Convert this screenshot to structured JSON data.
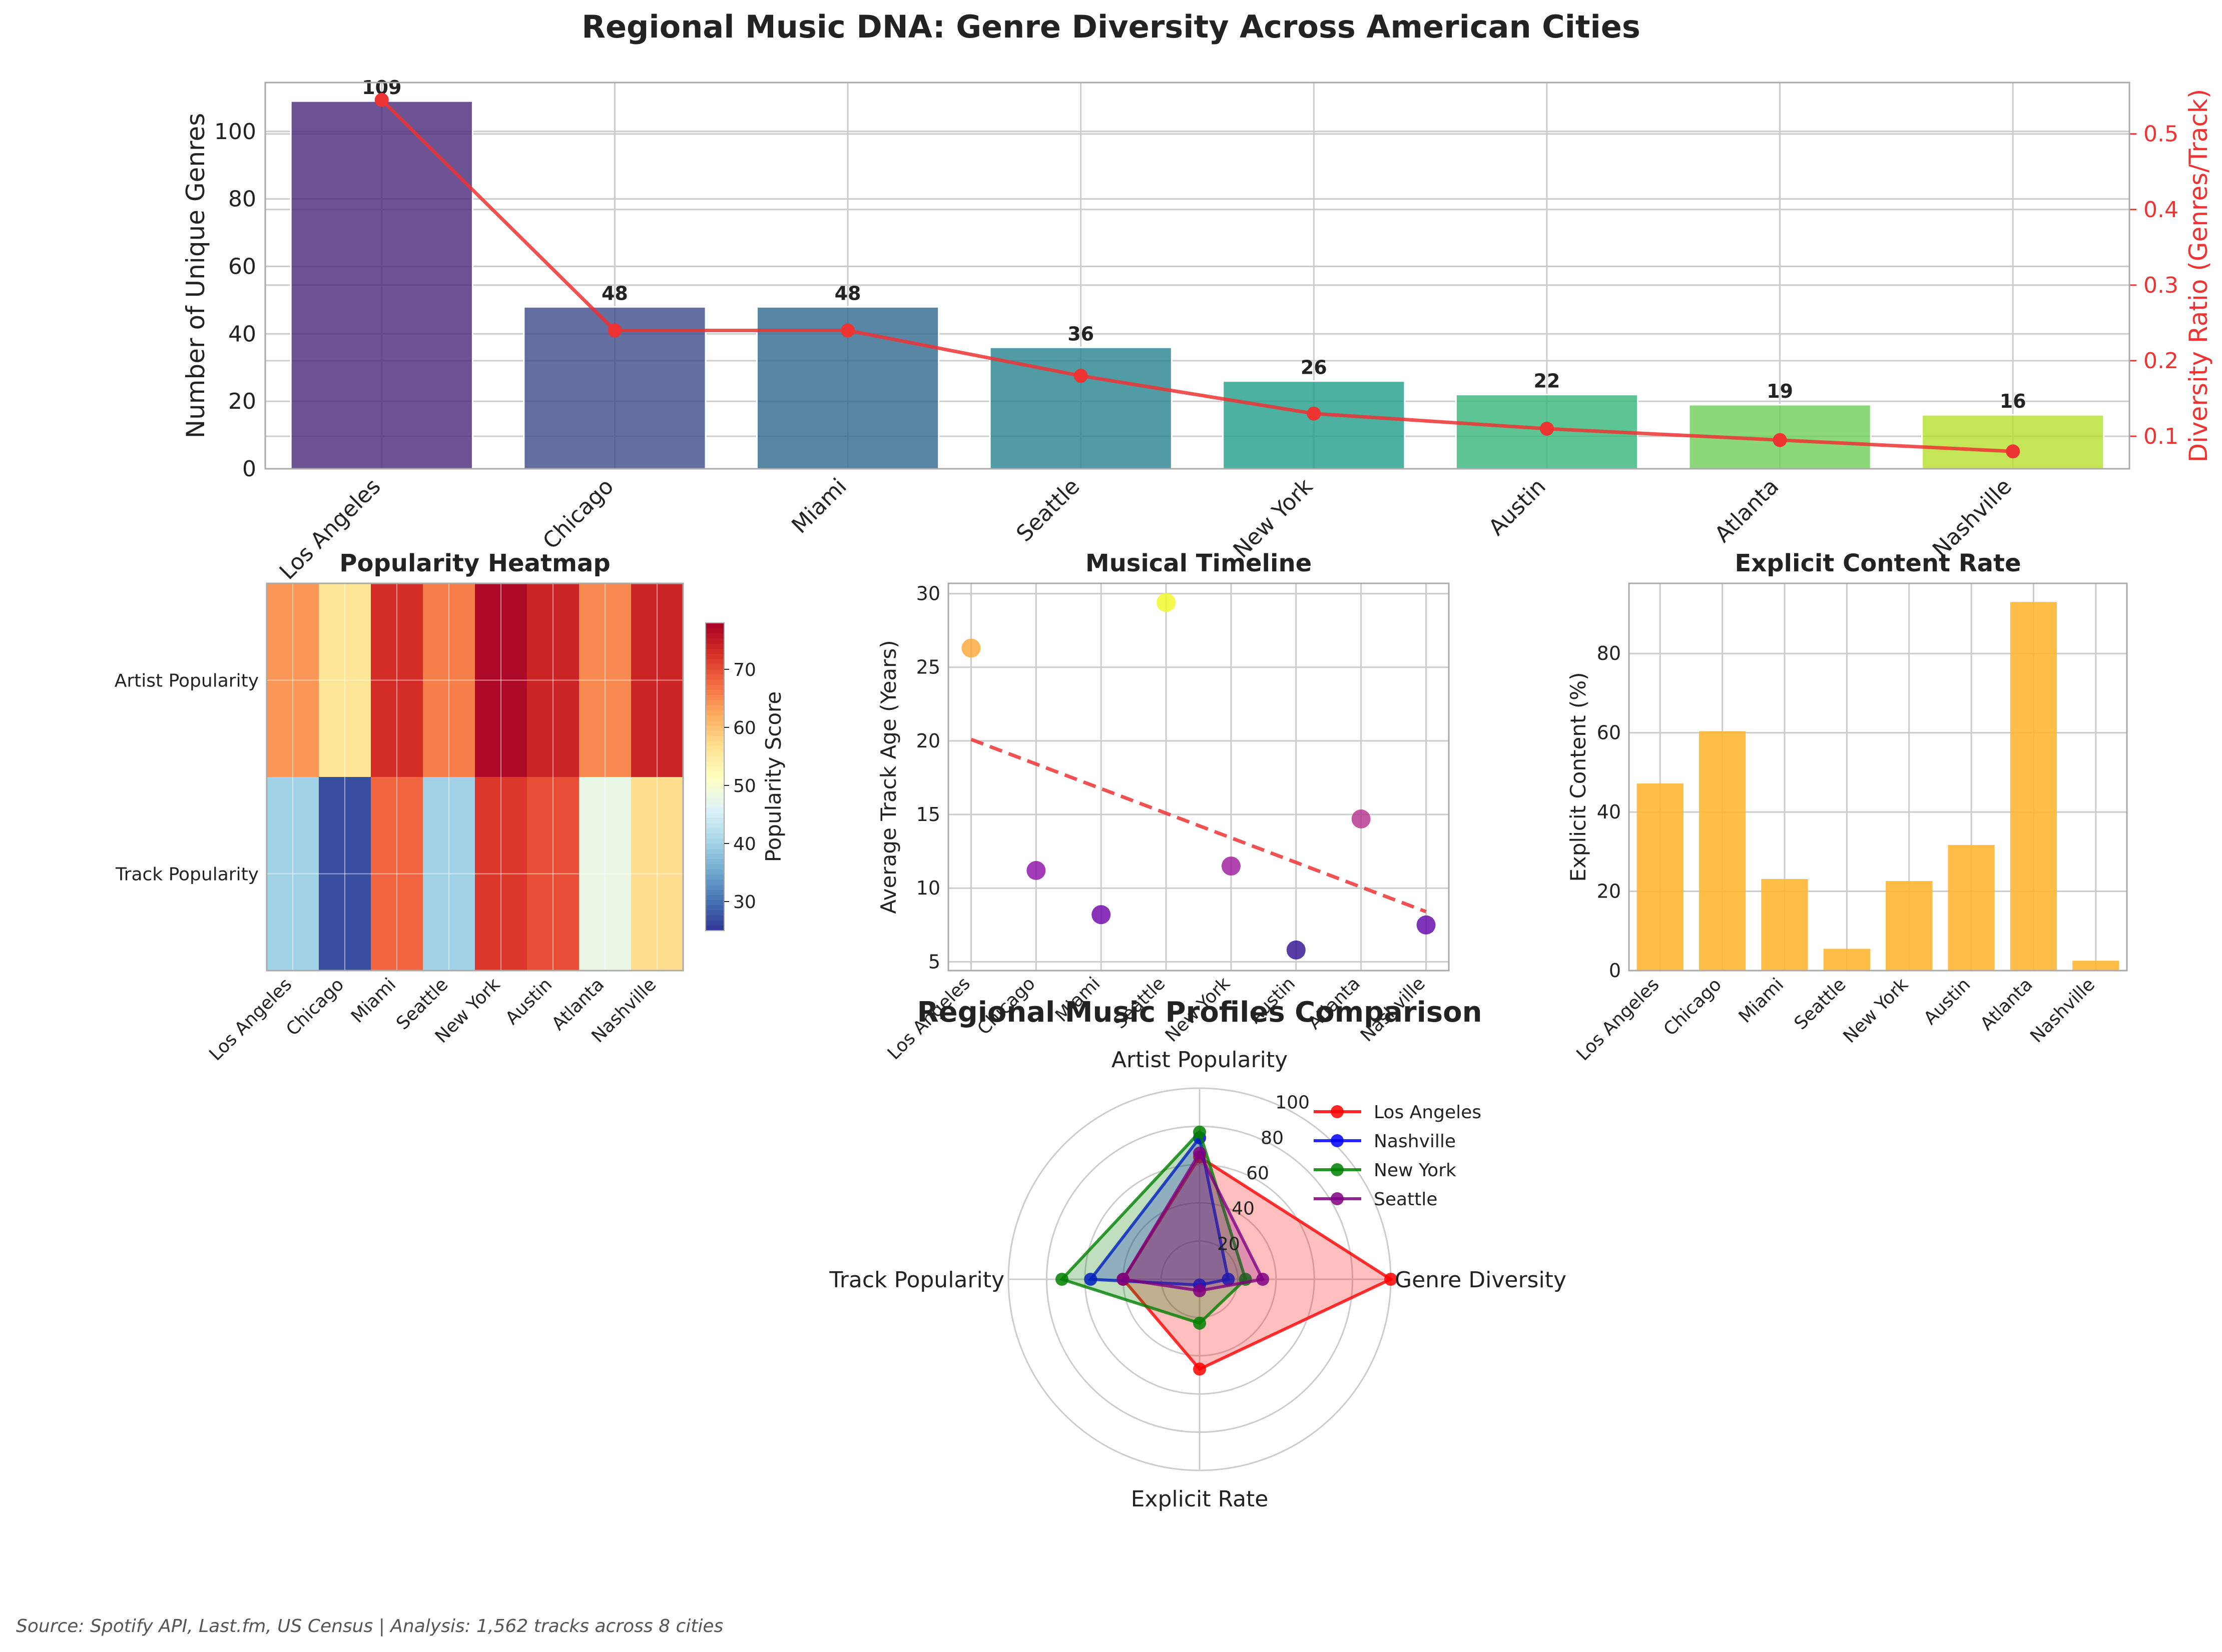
{
  "title": "Regional Music DNA: Genre Diversity Across American Cities",
  "source": "Source: Spotify API, Last.fm, US Census | Analysis: 1,562 tracks across 8 cities",
  "colors": {
    "line_red": "#ee3333",
    "explicit_bar": "#ffb733",
    "grid": "#cccccc",
    "frame": "#aaaaaa",
    "text": "#222222"
  },
  "chart_data": [
    {
      "id": "genre_diversity",
      "type": "bar",
      "categories": [
        "Los Angeles",
        "Chicago",
        "Miami",
        "Seattle",
        "New York",
        "Austin",
        "Atlanta",
        "Nashville"
      ],
      "values": [
        109,
        48,
        48,
        36,
        26,
        22,
        19,
        16
      ],
      "value_labels": [
        "109",
        "48",
        "48",
        "36",
        "26",
        "22",
        "19",
        "16"
      ],
      "bar_colors": [
        "#482878",
        "#3e4a89",
        "#31688e",
        "#26828e",
        "#1f9e89",
        "#35b779",
        "#6ece58",
        "#b5de2b"
      ],
      "ylabel": "Number of Unique Genres",
      "ylim": [
        0,
        114.5
      ],
      "yticks": [
        0,
        20,
        40,
        60,
        80,
        100
      ],
      "secondary_series": {
        "type": "line",
        "name": "Diversity Ratio (Genres/Track)",
        "values": [
          0.545,
          0.24,
          0.24,
          0.18,
          0.13,
          0.11,
          0.095,
          0.08
        ],
        "ylabel": "Diversity Ratio (Genres/Track)",
        "ylim": [
          0.057,
          0.568
        ],
        "yticks": [
          0.1,
          0.2,
          0.3,
          0.4,
          0.5
        ],
        "ytick_labels": [
          "0.1",
          "0.2",
          "0.3",
          "0.4",
          "0.5"
        ]
      }
    },
    {
      "id": "popularity_heatmap",
      "type": "heatmap",
      "title": "Popularity Heatmap",
      "rows": [
        "Artist Popularity",
        "Track Popularity"
      ],
      "columns": [
        "Los Angeles",
        "Chicago",
        "Miami",
        "Seattle",
        "New York",
        "Austin",
        "Atlanta",
        "Nashville"
      ],
      "values": [
        [
          64,
          56,
          73,
          66,
          77,
          74,
          65,
          74
        ],
        [
          40,
          27,
          68,
          40,
          72,
          70,
          48,
          57
        ]
      ],
      "colorbar": {
        "label": "Popularity Score",
        "range": [
          25,
          78
        ],
        "ticks": [
          30,
          40,
          50,
          60,
          70
        ],
        "colormap": "RdYlBu_r"
      }
    },
    {
      "id": "musical_timeline",
      "type": "scatter",
      "title": "Musical Timeline",
      "categories": [
        "Los Angeles",
        "Chicago",
        "Miami",
        "Seattle",
        "New York",
        "Austin",
        "Atlanta",
        "Nashville"
      ],
      "values": [
        26.3,
        11.2,
        8.2,
        29.4,
        11.5,
        5.8,
        14.7,
        7.5
      ],
      "point_colors": [
        "#fca636",
        "#8b0aa5",
        "#6a00a8",
        "#f0f921",
        "#9c179e",
        "#2d0c8f",
        "#b52f8c",
        "#5c01a6"
      ],
      "trend": {
        "style": "dashed",
        "start": 20.1,
        "end": 8.4
      },
      "ylabel": "Average Track Age (Years)",
      "ylim": [
        4.4,
        30.7
      ],
      "yticks": [
        5,
        10,
        15,
        20,
        25,
        30
      ]
    },
    {
      "id": "explicit_rate",
      "type": "bar",
      "title": "Explicit Content Rate",
      "categories": [
        "Los Angeles",
        "Chicago",
        "Miami",
        "Seattle",
        "New York",
        "Austin",
        "Atlanta",
        "Nashville"
      ],
      "values": [
        47.2,
        60.4,
        23.1,
        5.5,
        22.6,
        31.7,
        93.0,
        2.5
      ],
      "ylabel": "Explicit Content (%)",
      "ylim": [
        0,
        97.7
      ],
      "yticks": [
        0,
        20,
        40,
        60,
        80
      ]
    },
    {
      "id": "radar_profiles",
      "type": "radar",
      "title": "Regional Music Profiles Comparison",
      "axes": [
        "Artist Popularity",
        "Genre Diversity",
        "Explicit Rate",
        "Track Popularity"
      ],
      "rlim": [
        0,
        100
      ],
      "rticks": [
        20,
        40,
        60,
        80,
        100
      ],
      "series": [
        {
          "name": "Los Angeles",
          "color": "#ff0000",
          "values": [
            64,
            100,
            47,
            40
          ]
        },
        {
          "name": "Nashville",
          "color": "#0000ff",
          "values": [
            74,
            15,
            3,
            57
          ]
        },
        {
          "name": "New York",
          "color": "#008000",
          "values": [
            77,
            24,
            23,
            72
          ]
        },
        {
          "name": "Seattle",
          "color": "#800080",
          "values": [
            66,
            33,
            6,
            40
          ]
        }
      ]
    }
  ]
}
